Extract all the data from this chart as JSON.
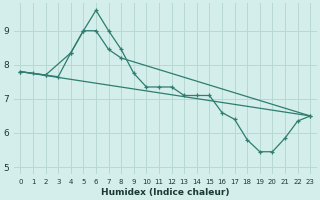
{
  "xlabel": "Humidex (Indice chaleur)",
  "bg_color": "#d4eeec",
  "grid_color": "#b8d8d4",
  "line_color": "#2e7d6e",
  "xlim": [
    -0.5,
    23.5
  ],
  "ylim": [
    4.8,
    9.8
  ],
  "yticks": [
    5,
    6,
    7,
    8,
    9
  ],
  "xticks": [
    0,
    1,
    2,
    3,
    4,
    5,
    6,
    7,
    8,
    9,
    10,
    11,
    12,
    13,
    14,
    15,
    16,
    17,
    18,
    19,
    20,
    21,
    22,
    23
  ],
  "series1_x": [
    0,
    1,
    2,
    3,
    4,
    5,
    6,
    7,
    8,
    9,
    10,
    11,
    12,
    13,
    14,
    15,
    16,
    17,
    18,
    19,
    20,
    21,
    22,
    23
  ],
  "series1_y": [
    7.8,
    7.75,
    7.7,
    7.65,
    8.35,
    9.0,
    9.6,
    9.0,
    8.45,
    7.75,
    7.35,
    7.35,
    7.35,
    7.1,
    7.1,
    7.1,
    6.6,
    6.4,
    5.8,
    5.45,
    5.45,
    5.85,
    6.35,
    6.5
  ],
  "series2_x": [
    0,
    2,
    4,
    5,
    6,
    7,
    8,
    23
  ],
  "series2_y": [
    7.8,
    7.7,
    8.35,
    9.0,
    9.0,
    8.45,
    8.2,
    6.5
  ],
  "series3_x": [
    0,
    23
  ],
  "series3_y": [
    7.8,
    6.5
  ]
}
